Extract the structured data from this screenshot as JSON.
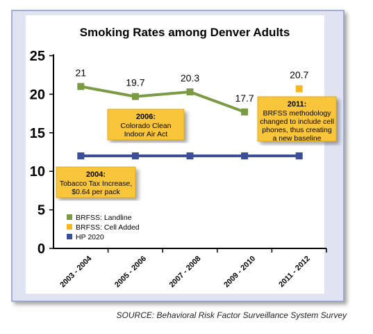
{
  "chart_data": {
    "type": "line",
    "title": "Smoking Rates among Denver Adults",
    "categories": [
      "2003 - 2004",
      "2005 - 2006",
      "2007 - 2008",
      "2009 - 2010",
      "2011 - 2012"
    ],
    "ylim": [
      0,
      25
    ],
    "yticks": [
      0,
      5,
      10,
      15,
      20,
      25
    ],
    "grid": false,
    "legend_position": "bottom-left",
    "series": [
      {
        "name": "BRFSS: Landline",
        "values": [
          21,
          19.7,
          20.3,
          17.7,
          null
        ],
        "color": "#7a9a44",
        "labels": [
          "21",
          "19.7",
          "20.3",
          "17.7",
          ""
        ]
      },
      {
        "name": "BRFSS: Cell Added",
        "values": [
          null,
          null,
          null,
          null,
          20.7
        ],
        "color": "#f6b81c",
        "labels": [
          "",
          "",
          "",
          "",
          "20.7"
        ]
      },
      {
        "name": "HP 2020",
        "values": [
          12,
          12,
          12,
          12,
          12
        ],
        "color": "#3c4e97",
        "labels": [
          "",
          "",
          "",
          "",
          ""
        ]
      }
    ],
    "annotations": [
      {
        "id": "2006",
        "title": "2006:",
        "lines": [
          "Colorado Clean",
          "Indoor Air Act"
        ]
      },
      {
        "id": "2011",
        "title": "2011:",
        "lines": [
          "BRFSS methodology",
          "changed to include cell",
          "phones, thus creating",
          "a new baseline"
        ]
      },
      {
        "id": "2004",
        "title": "2004:",
        "lines": [
          "Tobacco Tax Increase,",
          "$0.64 per pack"
        ]
      }
    ],
    "source": "SOURCE: Behavioral Risk Factor Surveillance System Survey"
  },
  "colors": {
    "panel_background": "#dfe3f2",
    "panel_border": "#8a97c8",
    "plot_background": "#ffffff",
    "axis": "#000000",
    "callout_fill": "#f9c63a",
    "callout_border": "#e0a916"
  }
}
